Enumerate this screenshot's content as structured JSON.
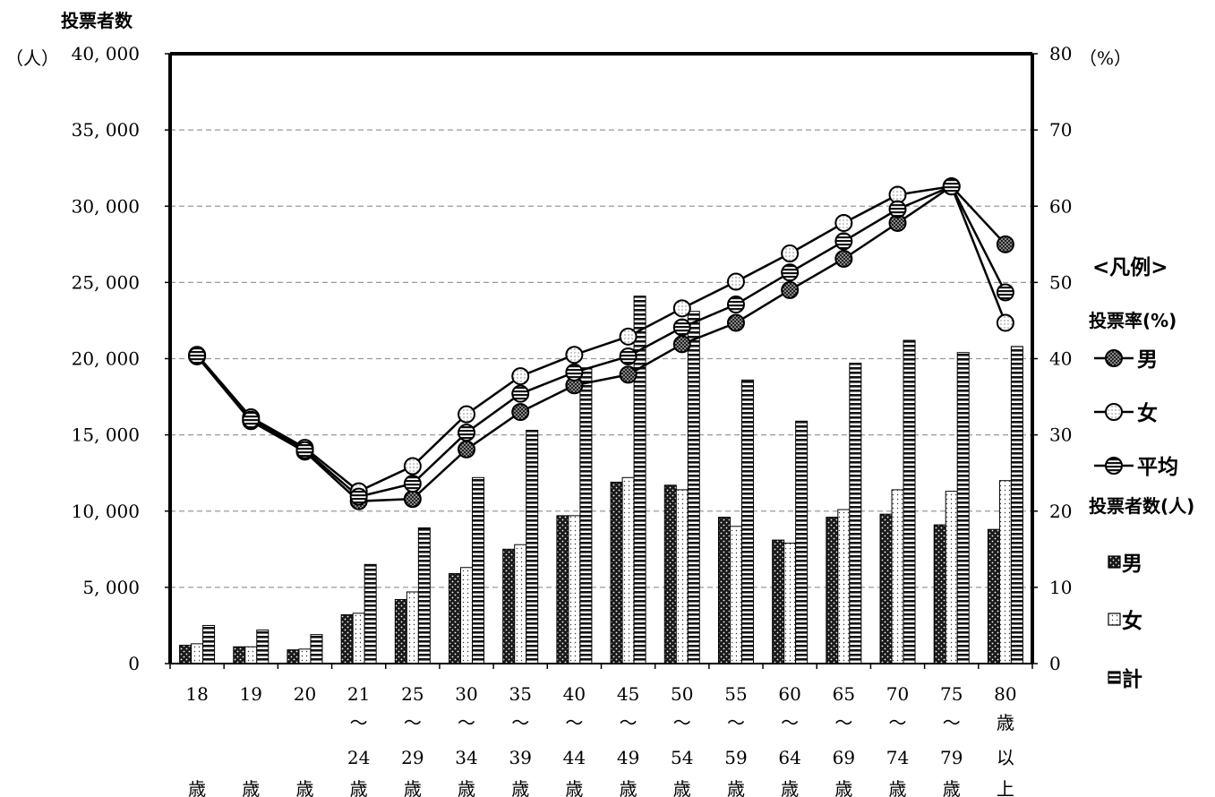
{
  "chart_data": {
    "type": "bar+line",
    "y_left_title": "投票者数",
    "y_left_unit": "（人）",
    "y_right_unit": "（%）",
    "y_left_range": [
      0,
      40000
    ],
    "y_right_range": [
      0,
      80
    ],
    "y_left_ticks": [
      "0",
      "5, 000",
      "10, 000",
      "15, 000",
      "20, 000",
      "25, 000",
      "30, 000",
      "35, 000",
      "40, 000"
    ],
    "y_right_ticks": [
      "0",
      "10",
      "20",
      "30",
      "40",
      "50",
      "60",
      "70",
      "80"
    ],
    "grid": "horizontal dashed",
    "categories": [
      [
        "18",
        "",
        "",
        "歳"
      ],
      [
        "19",
        "",
        "",
        "歳"
      ],
      [
        "20",
        "",
        "",
        "歳"
      ],
      [
        "21",
        "～",
        "24",
        "歳"
      ],
      [
        "25",
        "～",
        "29",
        "歳"
      ],
      [
        "30",
        "～",
        "34",
        "歳"
      ],
      [
        "35",
        "～",
        "39",
        "歳"
      ],
      [
        "40",
        "～",
        "44",
        "歳"
      ],
      [
        "45",
        "～",
        "49",
        "歳"
      ],
      [
        "50",
        "～",
        "54",
        "歳"
      ],
      [
        "55",
        "～",
        "59",
        "歳"
      ],
      [
        "60",
        "～",
        "64",
        "歳"
      ],
      [
        "65",
        "～",
        "69",
        "歳"
      ],
      [
        "70",
        "～",
        "74",
        "歳"
      ],
      [
        "75",
        "～",
        "79",
        "歳"
      ],
      [
        "80",
        "歳",
        "以",
        "上"
      ]
    ],
    "bar_series": [
      {
        "name": "男",
        "values": [
          1200,
          1100,
          900,
          3200,
          4200,
          5900,
          7500,
          9700,
          11900,
          11700,
          9600,
          8100,
          9600,
          9800,
          9100,
          8800
        ]
      },
      {
        "name": "女",
        "values": [
          1300,
          1100,
          950,
          3300,
          4700,
          6300,
          7800,
          9700,
          12200,
          11400,
          9000,
          7900,
          10100,
          11400,
          11300,
          12000
        ]
      },
      {
        "name": "計",
        "values": [
          2500,
          2200,
          1900,
          6500,
          8900,
          12200,
          15300,
          19400,
          24100,
          23100,
          18600,
          15900,
          19700,
          21200,
          20400,
          20800
        ]
      }
    ],
    "line_series": [
      {
        "name": "男",
        "values": [
          40.3,
          31.8,
          27.8,
          21.3,
          21.6,
          28.1,
          33.0,
          36.5,
          37.9,
          41.9,
          44.7,
          49.0,
          53.1,
          57.8,
          62.6,
          55.0
        ]
      },
      {
        "name": "女",
        "values": [
          40.5,
          32.3,
          28.3,
          22.6,
          25.9,
          32.7,
          37.7,
          40.5,
          42.9,
          46.6,
          50.1,
          53.8,
          57.8,
          61.5,
          62.6,
          44.7
        ]
      },
      {
        "name": "平均",
        "values": [
          40.4,
          32.0,
          28.0,
          21.9,
          23.6,
          30.3,
          35.4,
          38.2,
          40.3,
          44.1,
          47.1,
          51.3,
          55.4,
          59.6,
          62.6,
          48.7
        ]
      }
    ],
    "legend": {
      "position": "right",
      "title": "<凡例>",
      "line_heading": "投票率(%)",
      "line_labels": [
        "男",
        "女",
        "平均"
      ],
      "bar_heading": "投票者数(人)",
      "bar_labels": [
        "男",
        "女",
        "計"
      ]
    }
  }
}
